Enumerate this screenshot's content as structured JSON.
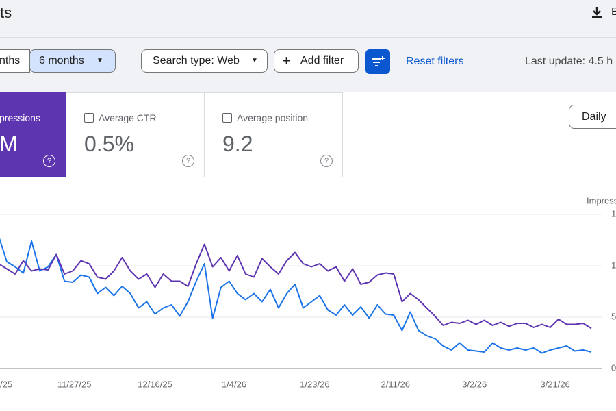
{
  "header": {
    "title": "ts",
    "export": "E"
  },
  "toolbar": {
    "date_ranges": [
      "nths",
      "6 months"
    ],
    "search_type": "Search type: Web",
    "add_filter": "Add filter",
    "reset": "Reset filters",
    "last_update": "Last update: 4.5 h"
  },
  "metrics": [
    {
      "label": "pressions",
      "value": "M"
    },
    {
      "label": "Average CTR",
      "value": "0.5%"
    },
    {
      "label": "Average position",
      "value": "9.2"
    }
  ],
  "granularity": "Daily",
  "chart_data": {
    "type": "line",
    "y_axis_label": "Impress",
    "ylim": [
      0,
      15
    ],
    "yticks": [
      0,
      5,
      {
        "value": 10,
        "label": "1"
      },
      {
        "value": 15,
        "label": "1"
      }
    ],
    "xlim": [
      0,
      72
    ],
    "xticks": [
      {
        "value": -0.6,
        "label": "/25"
      },
      {
        "value": 9.2,
        "label": "11/27/25"
      },
      {
        "value": 19,
        "label": "12/16/25"
      },
      {
        "value": 28.6,
        "label": "1/4/26"
      },
      {
        "value": 38.4,
        "label": "1/23/26"
      },
      {
        "value": 48.2,
        "label": "2/11/26"
      },
      {
        "value": 57.8,
        "label": "3/2/26"
      },
      {
        "value": 67.6,
        "label": "3/21/26"
      }
    ],
    "grid": true,
    "series": [
      {
        "color": "#1a73e8",
        "values": [
          12.9,
          10.4,
          9.9,
          9.3,
          12.4,
          9.5,
          9.9,
          11.1,
          8.5,
          8.4,
          9.1,
          8.9,
          7.3,
          7.9,
          7.1,
          8.0,
          7.3,
          5.9,
          6.5,
          5.3,
          5.9,
          6.2,
          5.1,
          6.5,
          8.5,
          10.2,
          4.9,
          7.9,
          8.5,
          7.3,
          6.7,
          7.3,
          6.5,
          7.7,
          5.9,
          7.3,
          8.2,
          5.9,
          6.5,
          7.1,
          5.7,
          5.2,
          6.2,
          5.2,
          6.0,
          4.9,
          6.2,
          5.3,
          5.2,
          3.7,
          5.5,
          3.7,
          3.2,
          2.9,
          2.2,
          1.8,
          2.5,
          1.8,
          1.7,
          1.6,
          2.5,
          2.0,
          1.8,
          2.0,
          1.8,
          2.0,
          1.5,
          1.8,
          2.0,
          2.2,
          1.7,
          1.8,
          1.6
        ]
      },
      {
        "color": "#5e35b1",
        "values": [
          10.2,
          9.7,
          9.2,
          10.5,
          9.5,
          9.7,
          9.6,
          11.1,
          9.2,
          9.5,
          10.5,
          10.2,
          8.9,
          8.7,
          9.5,
          10.8,
          9.5,
          8.7,
          9.2,
          7.9,
          9.2,
          8.5,
          8.5,
          8.0,
          10.2,
          12.1,
          9.9,
          10.8,
          9.5,
          11.0,
          9.2,
          8.9,
          10.7,
          9.9,
          9.2,
          10.5,
          11.3,
          10.2,
          9.9,
          10.2,
          9.5,
          9.9,
          8.5,
          9.7,
          8.2,
          8.4,
          9.1,
          9.3,
          9.2,
          6.5,
          7.3,
          6.7,
          5.9,
          5.1,
          4.2,
          4.5,
          4.4,
          4.7,
          4.3,
          4.7,
          4.2,
          4.5,
          4.1,
          4.4,
          4.4,
          4.0,
          4.3,
          4.0,
          4.8,
          4.3,
          4.3,
          4.4,
          3.9
        ]
      }
    ]
  }
}
